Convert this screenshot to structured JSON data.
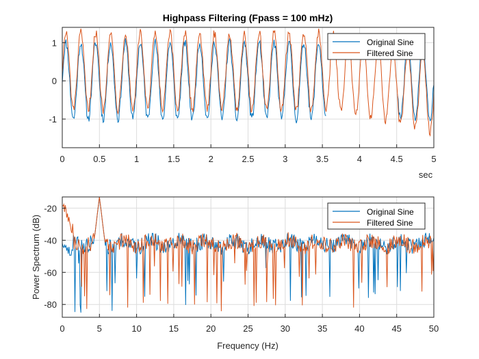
{
  "chart_data": [
    {
      "type": "line",
      "title": "Highpass Filtering  (Fpass = 100 mHz)",
      "xlabel": "sec",
      "ylabel": "",
      "xlim": [
        0,
        5
      ],
      "ylim": [
        -1.75,
        1.4
      ],
      "xticks": [
        0,
        0.5,
        1,
        1.5,
        2,
        2.5,
        3,
        3.5,
        4,
        4.5,
        5
      ],
      "xtick_labels": [
        "0",
        "0.5",
        "1",
        "1.5",
        "2",
        "2.5",
        "3",
        "3.5",
        "4",
        "4.5",
        "5"
      ],
      "yticks": [
        -1,
        0,
        1
      ],
      "ytick_labels": [
        "-1",
        "0",
        "1"
      ],
      "grid": true,
      "legend": "top-right",
      "signal": {
        "frequency_hz": 5,
        "amplitude": 1,
        "duration_s": 5,
        "sample_rate_hz": 100
      },
      "series": [
        {
          "name": "Original Sine",
          "color": "#0072BD",
          "noise_amplitude": 0.12,
          "offset": 0
        },
        {
          "name": "Filtered Sine",
          "color": "#D95319",
          "noise_amplitude": 0.12,
          "offset": 0.25,
          "offset_decay_to": -0.35
        }
      ]
    },
    {
      "type": "line",
      "title": "",
      "xlabel": "Frequency (Hz)",
      "ylabel": "Power Spectrum (dB)",
      "xlim": [
        0,
        50
      ],
      "ylim": [
        -88,
        -13
      ],
      "xticks": [
        0,
        5,
        10,
        15,
        20,
        25,
        30,
        35,
        40,
        45,
        50
      ],
      "xtick_labels": [
        "0",
        "5",
        "10",
        "15",
        "20",
        "25",
        "30",
        "35",
        "40",
        "45",
        "50"
      ],
      "yticks": [
        -80,
        -60,
        -40,
        -20
      ],
      "ytick_labels": [
        "-80",
        "-60",
        "-40",
        "-20"
      ],
      "grid": true,
      "legend": "top-right",
      "peak": {
        "frequency_hz": 5,
        "power_db": -13
      },
      "noise_floor_db": -42,
      "series": [
        {
          "name": "Original Sine",
          "color": "#0072BD",
          "low_freq_power_db": -45
        },
        {
          "name": "Filtered Sine",
          "color": "#D95319",
          "low_freq_power_db": -16
        }
      ]
    }
  ]
}
